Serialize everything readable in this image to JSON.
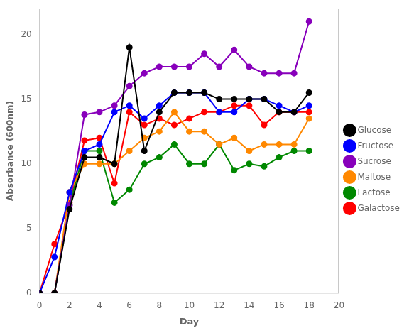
{
  "chart_data": {
    "type": "line",
    "xlabel": "Day",
    "ylabel": "Absorbance (600nm)",
    "x": [
      0,
      1,
      2,
      3,
      4,
      5,
      6,
      7,
      8,
      9,
      10,
      11,
      12,
      13,
      14,
      15,
      16,
      17,
      18
    ],
    "series": [
      {
        "name": "Glucose",
        "color": "#000000",
        "values": [
          0,
          0,
          6.5,
          10.5,
          10.5,
          10.0,
          19.0,
          11.0,
          14.0,
          15.5,
          15.5,
          15.5,
          15.0,
          15.0,
          15.0,
          15.0,
          14.0,
          14.0,
          15.5
        ]
      },
      {
        "name": "Fructose",
        "color": "#0000FF",
        "values": [
          0,
          2.8,
          7.8,
          11.0,
          11.5,
          14.0,
          14.5,
          13.5,
          14.5,
          15.5,
          15.5,
          15.5,
          14.0,
          14.0,
          15.0,
          15.0,
          14.5,
          14.0,
          14.5
        ]
      },
      {
        "name": "Sucrose",
        "color": "#8800BB",
        "values": [
          0,
          0,
          6.8,
          13.8,
          14.0,
          14.5,
          16.0,
          17.0,
          17.5,
          17.5,
          17.5,
          18.5,
          17.5,
          18.8,
          17.5,
          17.0,
          17.0,
          17.0,
          21.0
        ]
      },
      {
        "name": "Maltose",
        "color": "#FF8800",
        "values": [
          0,
          0,
          7.8,
          10.0,
          10.0,
          10.0,
          11.0,
          12.0,
          12.5,
          14.0,
          12.5,
          12.5,
          11.5,
          12.0,
          11.0,
          11.5,
          11.5,
          11.5,
          13.5
        ]
      },
      {
        "name": "Lactose",
        "color": "#008800",
        "values": [
          0,
          0,
          6.8,
          11.0,
          11.0,
          7.0,
          8.0,
          10.0,
          10.5,
          11.5,
          10.0,
          10.0,
          11.5,
          9.5,
          10.0,
          9.8,
          10.5,
          11.0,
          11.0
        ]
      },
      {
        "name": "Galactose",
        "color": "#FF0000",
        "values": [
          0,
          3.8,
          7.0,
          11.8,
          12.0,
          8.5,
          14.0,
          13.0,
          13.5,
          13.0,
          13.5,
          14.0,
          14.0,
          14.5,
          14.5,
          13.0,
          14.0,
          14.0,
          14.0
        ]
      }
    ],
    "xlim": [
      0,
      20
    ],
    "ylim": [
      0,
      22
    ],
    "xticks": [
      0,
      2,
      4,
      6,
      8,
      10,
      12,
      14,
      16,
      18,
      20
    ],
    "yticks": [
      0,
      5,
      10,
      15,
      20
    ],
    "grid": false,
    "legend": "right",
    "marker": "circle"
  }
}
